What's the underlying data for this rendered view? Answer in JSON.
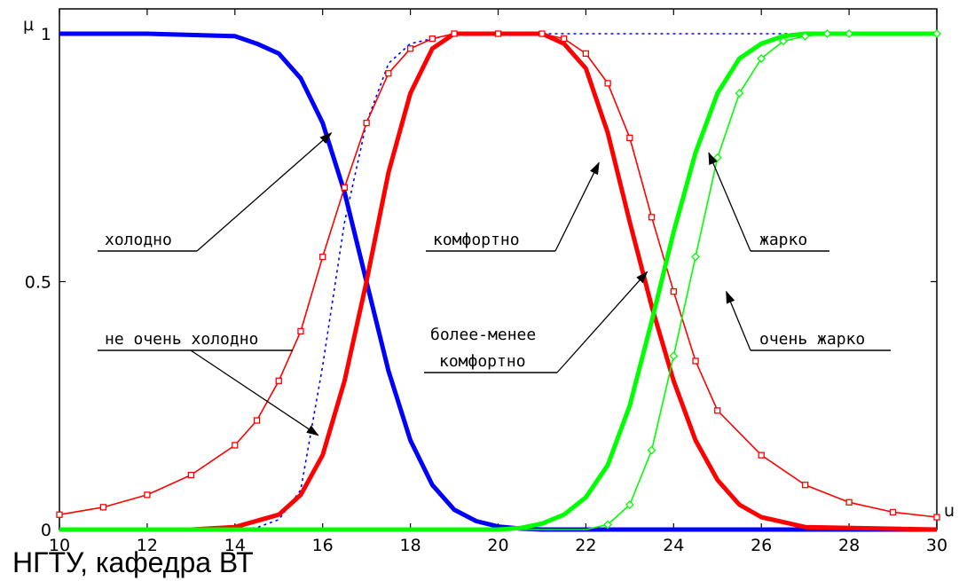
{
  "footer_text": "НГТУ, кафедра ВТ",
  "chart_data": {
    "type": "line",
    "title": "",
    "xlabel": "u",
    "ylabel": "μ",
    "xlim": [
      10,
      30
    ],
    "ylim": [
      0,
      1
    ],
    "x_ticks": [
      10,
      12,
      14,
      16,
      18,
      20,
      22,
      24,
      26,
      28,
      30
    ],
    "x_tick_labels": [
      "10",
      "12",
      "14",
      "16",
      "18",
      "20",
      "22",
      "24",
      "26",
      "28",
      "30"
    ],
    "y_ticks": [
      0,
      0.5,
      1
    ],
    "y_tick_labels": [
      "0",
      "0.5",
      "1"
    ],
    "grid": false,
    "series": [
      {
        "name": "холодно",
        "color": "#0000ff",
        "style": "solid",
        "width": "thick",
        "x": [
          10,
          12,
          14,
          14.5,
          15,
          15.5,
          16,
          16.5,
          17,
          17.5,
          18,
          18.5,
          19,
          19.5,
          20,
          20.5,
          21,
          22,
          30
        ],
        "y": [
          1,
          1,
          0.995,
          0.98,
          0.96,
          0.91,
          0.82,
          0.68,
          0.5,
          0.32,
          0.18,
          0.09,
          0.04,
          0.017,
          0.006,
          0.002,
          0,
          0,
          0
        ]
      },
      {
        "name": "не очень холодно",
        "color": "#0000ff",
        "style": "dotted",
        "width": "thin",
        "x": [
          10,
          14,
          14.5,
          15,
          15.5,
          16,
          16.5,
          17,
          17.5,
          18,
          18.5,
          19,
          20,
          30
        ],
        "y": [
          0,
          0,
          0.004,
          0.02,
          0.08,
          0.33,
          0.62,
          0.82,
          0.94,
          0.98,
          0.99,
          1,
          1,
          1
        ]
      },
      {
        "name": "комфортно",
        "color": "#ff0000",
        "style": "solid",
        "width": "thick",
        "x": [
          10,
          13,
          14,
          15,
          15.5,
          16,
          16.5,
          17,
          17.5,
          18,
          18.5,
          19,
          20,
          21,
          21.5,
          22,
          22.5,
          23,
          23.5,
          24,
          24.5,
          25,
          25.5,
          26,
          27,
          30
        ],
        "y": [
          0,
          0,
          0.005,
          0.03,
          0.07,
          0.15,
          0.3,
          0.5,
          0.72,
          0.88,
          0.97,
          1,
          1,
          1,
          0.98,
          0.93,
          0.8,
          0.62,
          0.45,
          0.3,
          0.18,
          0.1,
          0.05,
          0.025,
          0.005,
          0
        ]
      },
      {
        "name": "более-менее комфортно",
        "color": "#ff0000",
        "style": "marker-square",
        "width": "thin",
        "x": [
          10,
          11,
          12,
          13,
          14,
          14.5,
          15,
          15.5,
          16,
          16.5,
          17,
          17.5,
          18,
          18.5,
          19,
          20,
          21,
          21.5,
          22,
          22.5,
          23,
          23.5,
          24,
          24.5,
          25,
          26,
          27,
          28,
          29,
          30
        ],
        "y": [
          0.03,
          0.045,
          0.07,
          0.11,
          0.17,
          0.22,
          0.3,
          0.4,
          0.55,
          0.69,
          0.82,
          0.92,
          0.97,
          0.99,
          1,
          1,
          1,
          0.99,
          0.96,
          0.9,
          0.79,
          0.63,
          0.48,
          0.34,
          0.24,
          0.15,
          0.09,
          0.055,
          0.035,
          0.025
        ]
      },
      {
        "name": "жарко",
        "color": "#00ff00",
        "style": "solid",
        "width": "thick",
        "x": [
          10,
          20,
          20.5,
          21,
          21.5,
          22,
          22.5,
          23,
          23.5,
          24,
          24.5,
          25,
          25.5,
          26,
          26.5,
          27,
          27.5,
          28,
          30
        ],
        "y": [
          0,
          0,
          0.003,
          0.012,
          0.03,
          0.065,
          0.13,
          0.25,
          0.42,
          0.6,
          0.76,
          0.88,
          0.95,
          0.98,
          0.995,
          1,
          1,
          1,
          1
        ]
      },
      {
        "name": "очень жарко",
        "color": "#00ff00",
        "style": "marker-diamond",
        "width": "thin",
        "x": [
          10,
          22,
          22.5,
          23,
          23.5,
          24,
          24.5,
          25,
          25.5,
          26,
          26.5,
          27,
          27.5,
          28,
          30
        ],
        "y": [
          0,
          0,
          0.01,
          0.05,
          0.16,
          0.35,
          0.55,
          0.75,
          0.88,
          0.95,
          0.985,
          0.995,
          1,
          1,
          1
        ]
      }
    ],
    "annotations": [
      {
        "text": "холодно",
        "arrow_to": [
          16.2,
          0.8
        ]
      },
      {
        "text": "не очень холодно",
        "arrow_to": [
          15.9,
          0.19
        ]
      },
      {
        "text": "комфортно",
        "arrow_to": [
          22.3,
          0.74
        ]
      },
      {
        "text": "более-менее",
        "text2": "комфортно",
        "arrow_to": [
          23.4,
          0.52
        ]
      },
      {
        "text": "жарко",
        "arrow_to": [
          24.8,
          0.76
        ]
      },
      {
        "text": "очень жарко",
        "arrow_to": [
          25.2,
          0.48
        ]
      }
    ]
  }
}
